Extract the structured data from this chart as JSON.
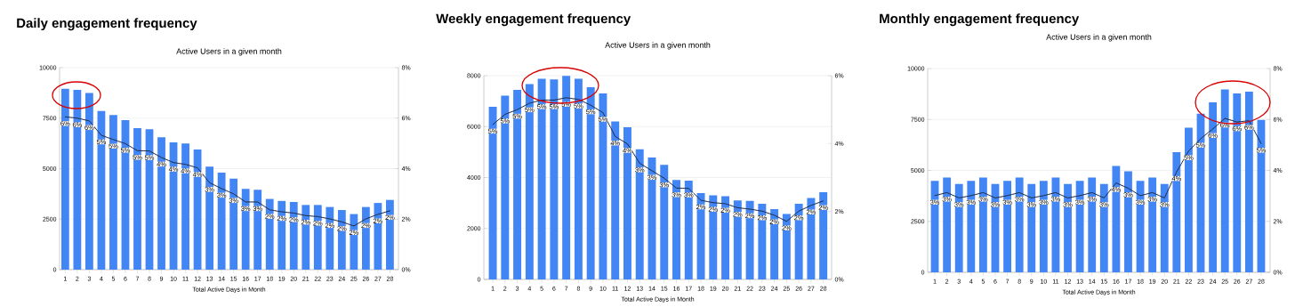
{
  "chart_data": [
    {
      "type": "bar",
      "title": "Daily engagement frequency",
      "subtitle": "Active Users in a given month",
      "xlabel": "Total Active Days in Month",
      "categories": [
        "1",
        "2",
        "3",
        "4",
        "5",
        "6",
        "7",
        "8",
        "9",
        "10",
        "11",
        "12",
        "13",
        "14",
        "15",
        "16",
        "17",
        "18",
        "19",
        "20",
        "21",
        "22",
        "23",
        "24",
        "25",
        "26",
        "27",
        "28"
      ],
      "series": [
        {
          "type": "bar",
          "color": "#4285f4",
          "values": [
            8950,
            8900,
            8750,
            7850,
            7650,
            7400,
            7000,
            6950,
            6550,
            6300,
            6250,
            5950,
            5100,
            4800,
            4500,
            4000,
            3950,
            3500,
            3400,
            3350,
            3200,
            3200,
            3100,
            2950,
            2750,
            3100,
            3300,
            3450
          ]
        },
        {
          "type": "line",
          "axis": "y2",
          "color": "#1f2a44",
          "values": [
            6.05,
            6.0,
            5.89,
            5.32,
            5.15,
            4.99,
            4.71,
            4.7,
            4.44,
            4.24,
            4.17,
            4.03,
            3.44,
            3.21,
            3.0,
            2.68,
            2.68,
            2.37,
            2.29,
            2.24,
            2.14,
            2.1,
            2.01,
            1.89,
            1.73,
            2.01,
            2.19,
            2.33
          ],
          "value_labels": [
            "6%",
            "6%",
            "6%",
            "5%",
            "5%",
            "5%",
            "5%",
            "5%",
            "4%",
            "4%",
            "4%",
            "4%",
            "3%",
            "3%",
            "3%",
            "3%",
            "3%",
            "2%",
            "2%",
            "2%",
            "2%",
            "2%",
            "2%",
            "2%",
            "2%",
            "2%",
            "2%",
            "2%"
          ]
        }
      ],
      "ylim": [
        0,
        10000
      ],
      "yticks": [
        0,
        2500,
        5000,
        7500,
        10000
      ],
      "y2lim": [
        0,
        8
      ],
      "y2ticks": [
        {
          "value": 0,
          "label": "0%"
        },
        {
          "value": 2,
          "label": "2%"
        },
        {
          "value": 4,
          "label": "4%"
        },
        {
          "value": 6,
          "label": "6%"
        },
        {
          "value": 8,
          "label": "8%"
        }
      ],
      "grid": "y",
      "line_style": "dotted",
      "marker": "none"
    },
    {
      "type": "bar",
      "title": "Weekly engagement frequency",
      "subtitle": "Active Users in a given month",
      "xlabel": "Total Active Days in Month",
      "categories": [
        "1",
        "2",
        "3",
        "4",
        "5",
        "6",
        "7",
        "8",
        "9",
        "10",
        "11",
        "12",
        "13",
        "14",
        "15",
        "16",
        "17",
        "18",
        "19",
        "20",
        "21",
        "22",
        "23",
        "24",
        "25",
        "26",
        "27",
        "28"
      ],
      "series": [
        {
          "type": "bar",
          "color": "#4285f4",
          "values": [
            6780,
            7210,
            7440,
            7670,
            7880,
            7850,
            7990,
            7880,
            7550,
            7300,
            6200,
            5970,
            5110,
            4790,
            4500,
            3900,
            3880,
            3390,
            3300,
            3270,
            3100,
            3080,
            2970,
            2760,
            2570,
            2970,
            3200,
            3420
          ]
        },
        {
          "type": "line",
          "axis": "y2",
          "color": "#1f2a44",
          "values": [
            4.56,
            4.86,
            5.0,
            5.19,
            5.28,
            5.28,
            5.35,
            5.3,
            5.13,
            4.91,
            4.21,
            3.99,
            3.42,
            3.2,
            2.98,
            2.69,
            2.68,
            2.33,
            2.26,
            2.23,
            2.11,
            2.07,
            2.01,
            1.89,
            1.71,
            2.01,
            2.18,
            2.31
          ],
          "value_labels": [
            "5%",
            "5%",
            "5%",
            "5%",
            "5%",
            "5%",
            "5%",
            "5%",
            "5%",
            "5%",
            "4%",
            "4%",
            "3%",
            "3%",
            "3%",
            "3%",
            "3%",
            "2%",
            "2%",
            "2%",
            "2%",
            "2%",
            "2%",
            "2%",
            "2%",
            "2%",
            "2%",
            "2%"
          ]
        }
      ],
      "ylim": [
        0,
        8000
      ],
      "yticks": [
        0,
        2000,
        4000,
        6000,
        8000
      ],
      "y2lim": [
        0,
        6
      ],
      "y2ticks": [
        {
          "value": 0,
          "label": "0%"
        },
        {
          "value": 2,
          "label": "2%"
        },
        {
          "value": 4,
          "label": "4%"
        },
        {
          "value": 6,
          "label": "6%"
        }
      ],
      "grid": "y",
      "line_style": "dotted",
      "marker": "none"
    },
    {
      "type": "bar",
      "title": "Monthly engagement frequency",
      "subtitle": "Active Users in a given month",
      "xlabel": "Total Active Days in Month",
      "categories": [
        "1",
        "2",
        "3",
        "4",
        "5",
        "6",
        "7",
        "8",
        "9",
        "10",
        "11",
        "12",
        "13",
        "14",
        "15",
        "16",
        "17",
        "18",
        "19",
        "20",
        "21",
        "22",
        "23",
        "24",
        "25",
        "26",
        "27",
        "28"
      ],
      "series": [
        {
          "type": "bar",
          "color": "#4285f4",
          "values": [
            4490,
            4650,
            4330,
            4490,
            4650,
            4330,
            4490,
            4650,
            4330,
            4490,
            4650,
            4330,
            4490,
            4650,
            4330,
            5220,
            4960,
            4490,
            4650,
            4330,
            5890,
            7100,
            7780,
            8340,
            8970,
            8780,
            8860,
            7480
          ]
        },
        {
          "type": "line",
          "axis": "y2",
          "color": "#1f2a44",
          "values": [
            3.01,
            3.13,
            2.92,
            3.01,
            3.13,
            2.92,
            3.01,
            3.13,
            2.92,
            3.01,
            3.13,
            2.92,
            3.01,
            3.13,
            2.92,
            3.51,
            3.3,
            3.01,
            3.13,
            2.92,
            3.94,
            4.76,
            5.25,
            5.63,
            6.04,
            5.9,
            5.95,
            5.05
          ],
          "value_labels": [
            "3%",
            "3%",
            "3%",
            "3%",
            "3%",
            "3%",
            "3%",
            "3%",
            "3%",
            "3%",
            "3%",
            "3%",
            "3%",
            "3%",
            "3%",
            "4%",
            "3%",
            "3%",
            "3%",
            "3%",
            "4%",
            "5%",
            "5%",
            "6%",
            "6%",
            "6%",
            "6%",
            "5%"
          ]
        }
      ],
      "ylim": [
        0,
        10000
      ],
      "yticks": [
        0,
        2500,
        5000,
        7500,
        10000
      ],
      "y2lim": [
        0,
        8
      ],
      "y2ticks": [
        {
          "value": 0,
          "label": "0%"
        },
        {
          "value": 2,
          "label": "2%"
        },
        {
          "value": 4,
          "label": "4%"
        },
        {
          "value": 6,
          "label": "6%"
        },
        {
          "value": 8,
          "label": "8%"
        }
      ],
      "grid": "y",
      "line_style": "dotted",
      "marker": "none"
    }
  ]
}
